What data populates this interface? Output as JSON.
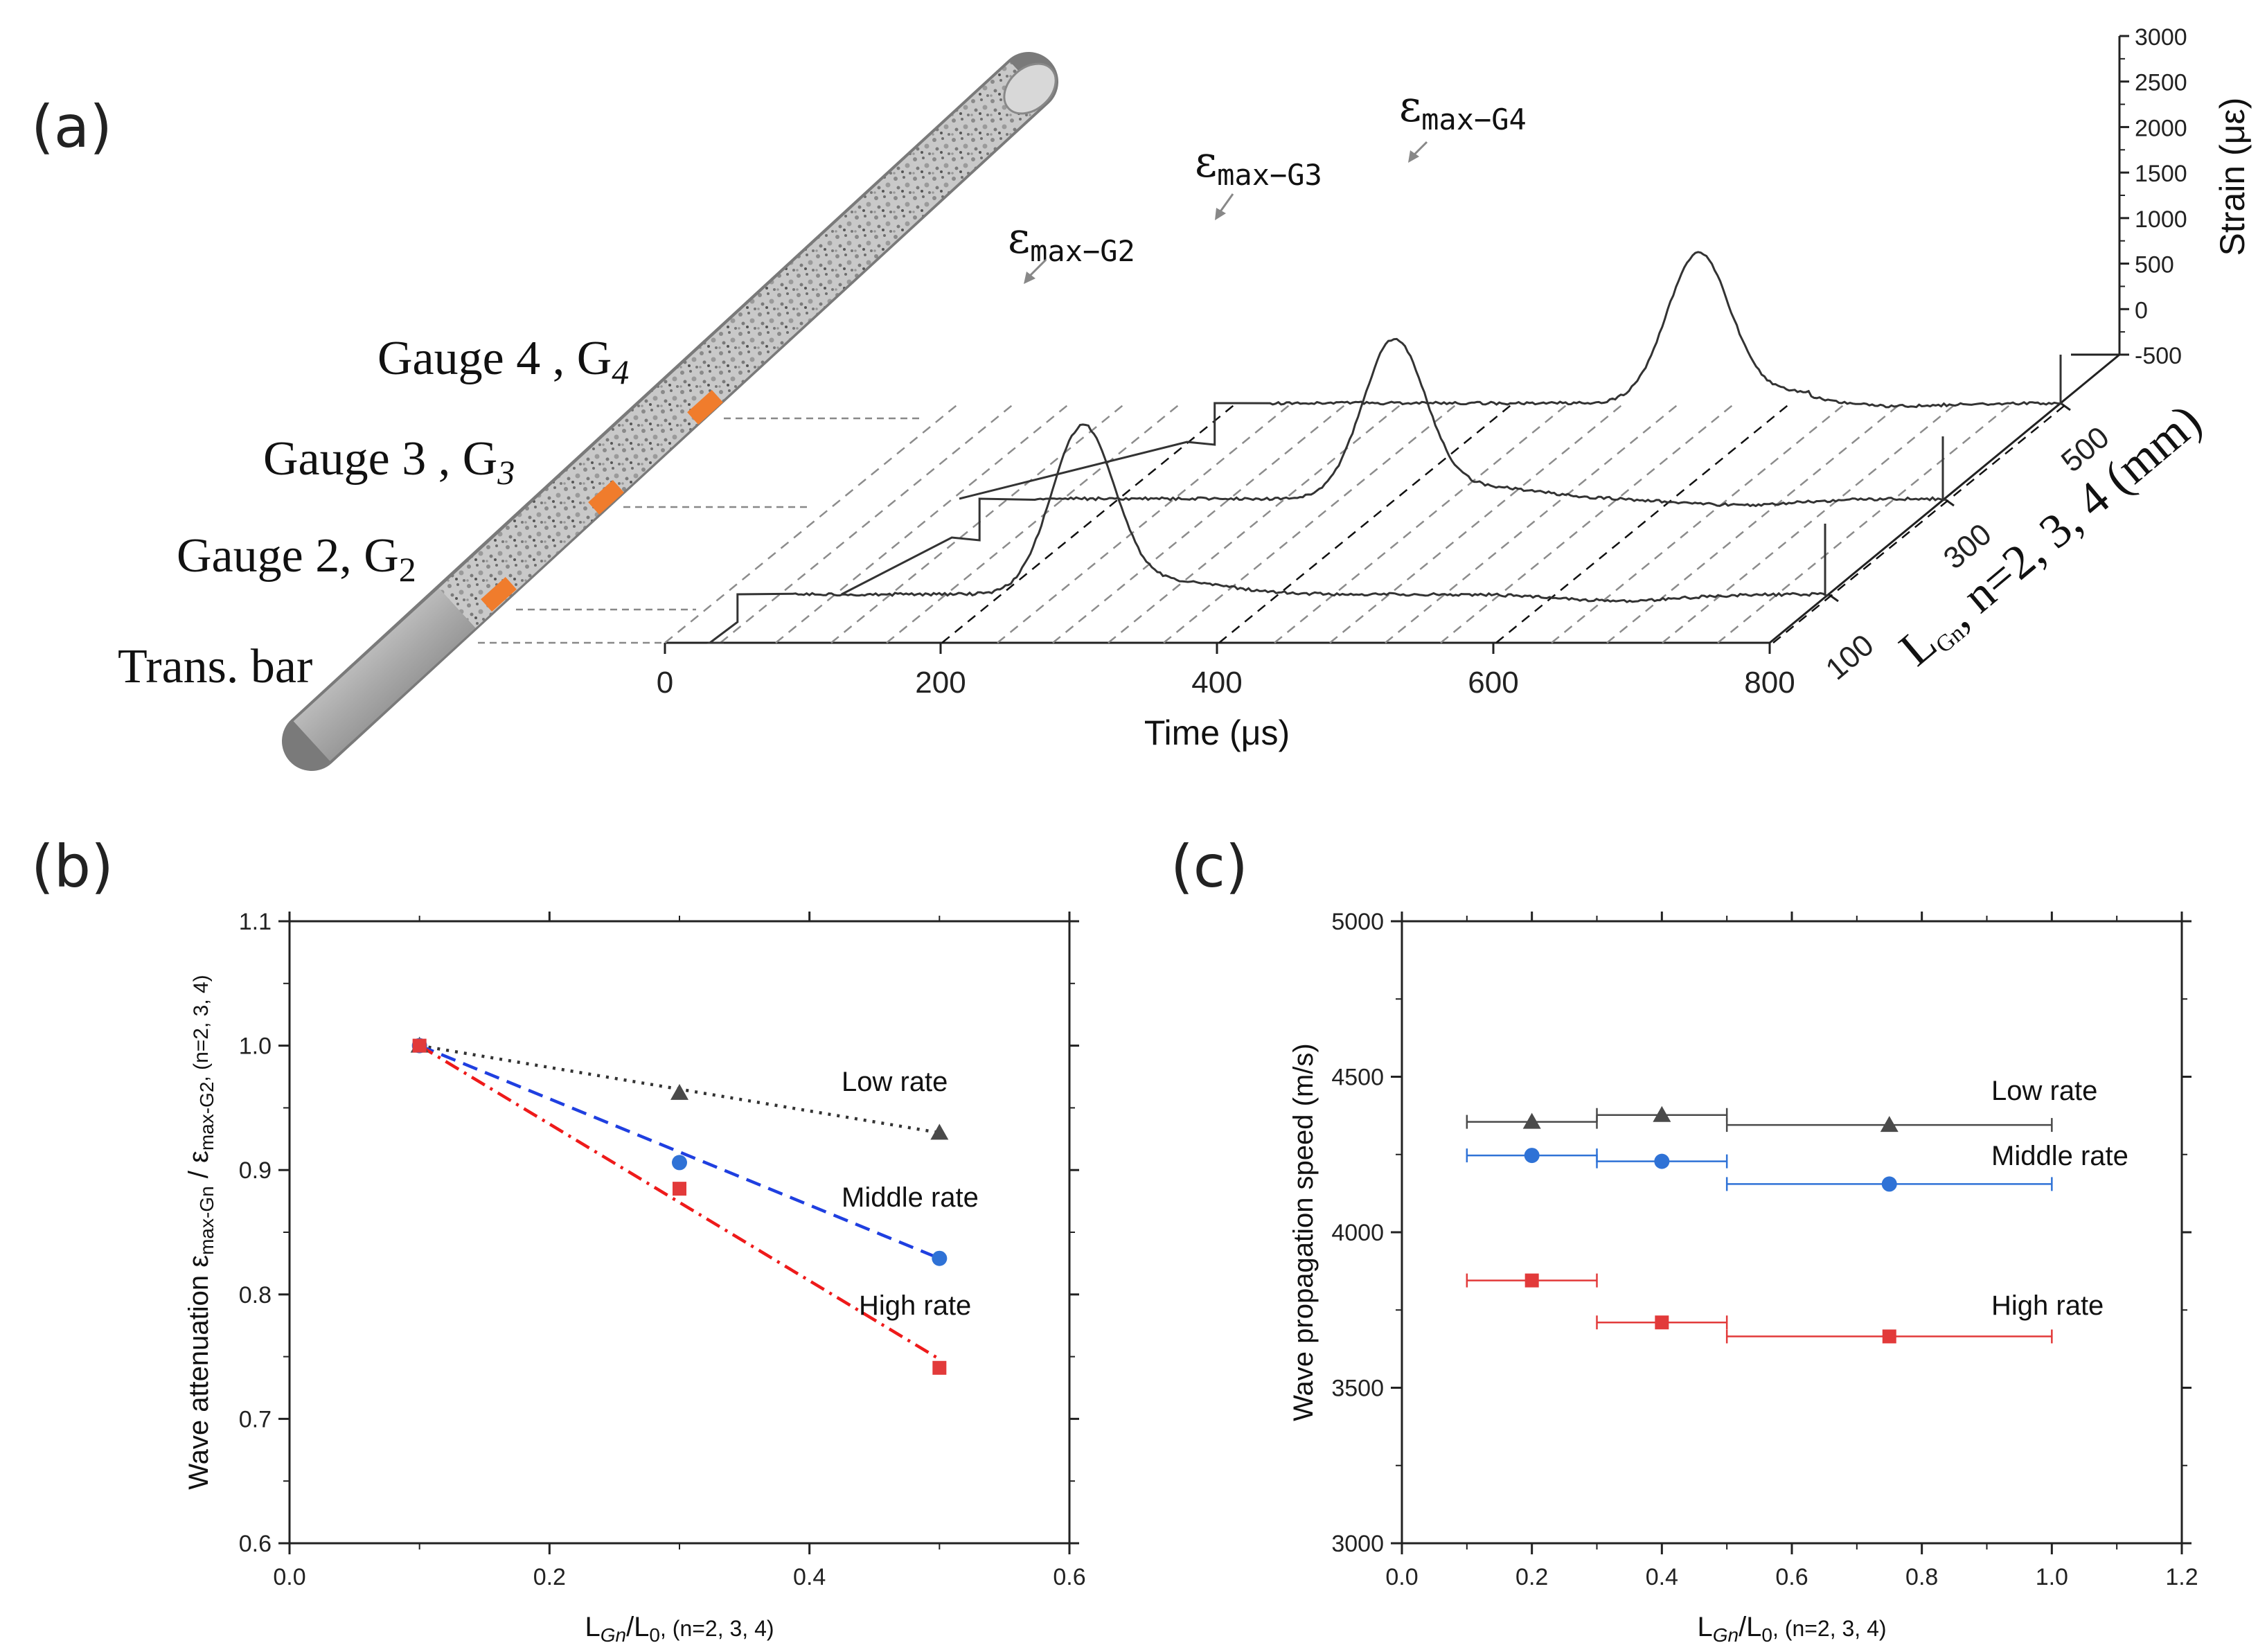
{
  "colors": {
    "low": "#4a4a4a",
    "middle": "#2f72d6",
    "high": "#e23a3a",
    "fit_low": "#333333",
    "fit_middle": "#1f3fe0",
    "fit_high": "#ee1a1a",
    "gauge": "#f07c2c",
    "trace": "#333333"
  },
  "panel_a": {
    "letter": "(a)",
    "bar_labels": [
      {
        "main": "Gauge 4 , G",
        "sub": "4"
      },
      {
        "main": "Gauge 3 , G",
        "sub": "3"
      },
      {
        "main": "Gauge 2, G",
        "sub": "2"
      },
      {
        "main": "Trans. bar",
        "sub": ""
      }
    ],
    "peak_labels": [
      {
        "main": "ε",
        "sub": "max−G2"
      },
      {
        "main": "ε",
        "sub": "max−G3"
      },
      {
        "main": "ε",
        "sub": "max−G4"
      }
    ],
    "time_axis": {
      "title": "Time (μs)",
      "ticks": [
        "0",
        "200",
        "400",
        "600",
        "800"
      ]
    },
    "strain_axis": {
      "title": "Strain (με)",
      "ticks": [
        "3000",
        "2500",
        "2000",
        "1500",
        "1000",
        "500",
        "0",
        "-500"
      ]
    },
    "length_axis": {
      "title": "L",
      "title_sub": "Gn",
      "title_rest": ", n=2, 3, 4 (mm)",
      "ticks": [
        "100",
        "300",
        "500"
      ]
    },
    "traces": [
      {
        "gauge": "G2",
        "length_mm": 100,
        "step_time_us": 40,
        "pulse_peak_time_us": 260,
        "peak_strain": 1800
      },
      {
        "gauge": "G3",
        "length_mm": 300,
        "step_time_us": 130,
        "pulse_peak_time_us": 400,
        "peak_strain": 1700
      },
      {
        "gauge": "G4",
        "length_mm": 500,
        "step_time_us": 215,
        "pulse_peak_time_us": 535,
        "peak_strain": 1600
      }
    ]
  },
  "chart_data": [
    {
      "type": "scatter",
      "panel": "(b)",
      "xlabel": "L",
      "xlabel_sub1": "Gn",
      "xlabel_mid": "/L",
      "xlabel_sub2": "0",
      "xlabel_suffix": ", (n=2, 3, 4)",
      "ylabel": "Wave attenuation ε",
      "ylabel_sub1": "max-Gn",
      "ylabel_mid": " / ε",
      "ylabel_sub2": "max-G2",
      "ylabel_suffix": ", (n=2, 3, 4)",
      "xlim": [
        0.0,
        0.6
      ],
      "ylim": [
        0.6,
        1.1
      ],
      "x_ticks": [
        "0.0",
        "0.2",
        "0.4",
        "0.6"
      ],
      "y_ticks": [
        "0.6",
        "0.7",
        "0.8",
        "0.9",
        "1.0",
        "1.1"
      ],
      "series": [
        {
          "name": "Low rate",
          "marker": "triangle",
          "x": [
            0.1,
            0.3,
            0.5
          ],
          "y": [
            1.0,
            0.962,
            0.93
          ],
          "fit": [
            [
              0.1,
              1.0
            ],
            [
              0.5,
              0.93
            ]
          ],
          "fit_style": "dotted"
        },
        {
          "name": "Middle rate",
          "marker": "circle",
          "x": [
            0.1,
            0.3,
            0.5
          ],
          "y": [
            1.0,
            0.906,
            0.829
          ],
          "fit": [
            [
              0.1,
              1.0
            ],
            [
              0.5,
              0.829
            ]
          ],
          "fit_style": "dashed"
        },
        {
          "name": "High rate",
          "marker": "square",
          "x": [
            0.1,
            0.3,
            0.5
          ],
          "y": [
            1.0,
            0.885,
            0.741
          ],
          "fit": [
            [
              0.1,
              1.0
            ],
            [
              0.5,
              0.748
            ]
          ],
          "fit_style": "dashdot"
        }
      ]
    },
    {
      "type": "scatter",
      "panel": "(c)",
      "xlabel": "L",
      "xlabel_sub1": "Gn",
      "xlabel_mid": "/L",
      "xlabel_sub2": "0",
      "xlabel_suffix": ", (n=2, 3, 4)",
      "ylabel": "Wave propagation speed (m/s)",
      "xlim": [
        0.0,
        1.2
      ],
      "ylim": [
        3000,
        5000
      ],
      "x_ticks": [
        "0.0",
        "0.2",
        "0.4",
        "0.6",
        "0.8",
        "1.0",
        "1.2"
      ],
      "y_ticks": [
        "3000",
        "3500",
        "4000",
        "4500",
        "5000"
      ],
      "series": [
        {
          "name": "Low rate",
          "marker": "triangle",
          "x": [
            0.2,
            0.4,
            0.75
          ],
          "y": [
            4355,
            4377,
            4345
          ],
          "xerr": [
            [
              0.1,
              0.3
            ],
            [
              0.3,
              0.5
            ],
            [
              0.5,
              1.0
            ]
          ]
        },
        {
          "name": "Middle rate",
          "marker": "circle",
          "x": [
            0.2,
            0.4,
            0.75
          ],
          "y": [
            4247,
            4228,
            4155
          ],
          "xerr": [
            [
              0.1,
              0.3
            ],
            [
              0.3,
              0.5
            ],
            [
              0.5,
              1.0
            ]
          ]
        },
        {
          "name": "High rate",
          "marker": "square",
          "x": [
            0.2,
            0.4,
            0.75
          ],
          "y": [
            3845,
            3710,
            3665
          ],
          "xerr": [
            [
              0.1,
              0.3
            ],
            [
              0.3,
              0.5
            ],
            [
              0.5,
              1.0
            ]
          ]
        }
      ]
    }
  ]
}
